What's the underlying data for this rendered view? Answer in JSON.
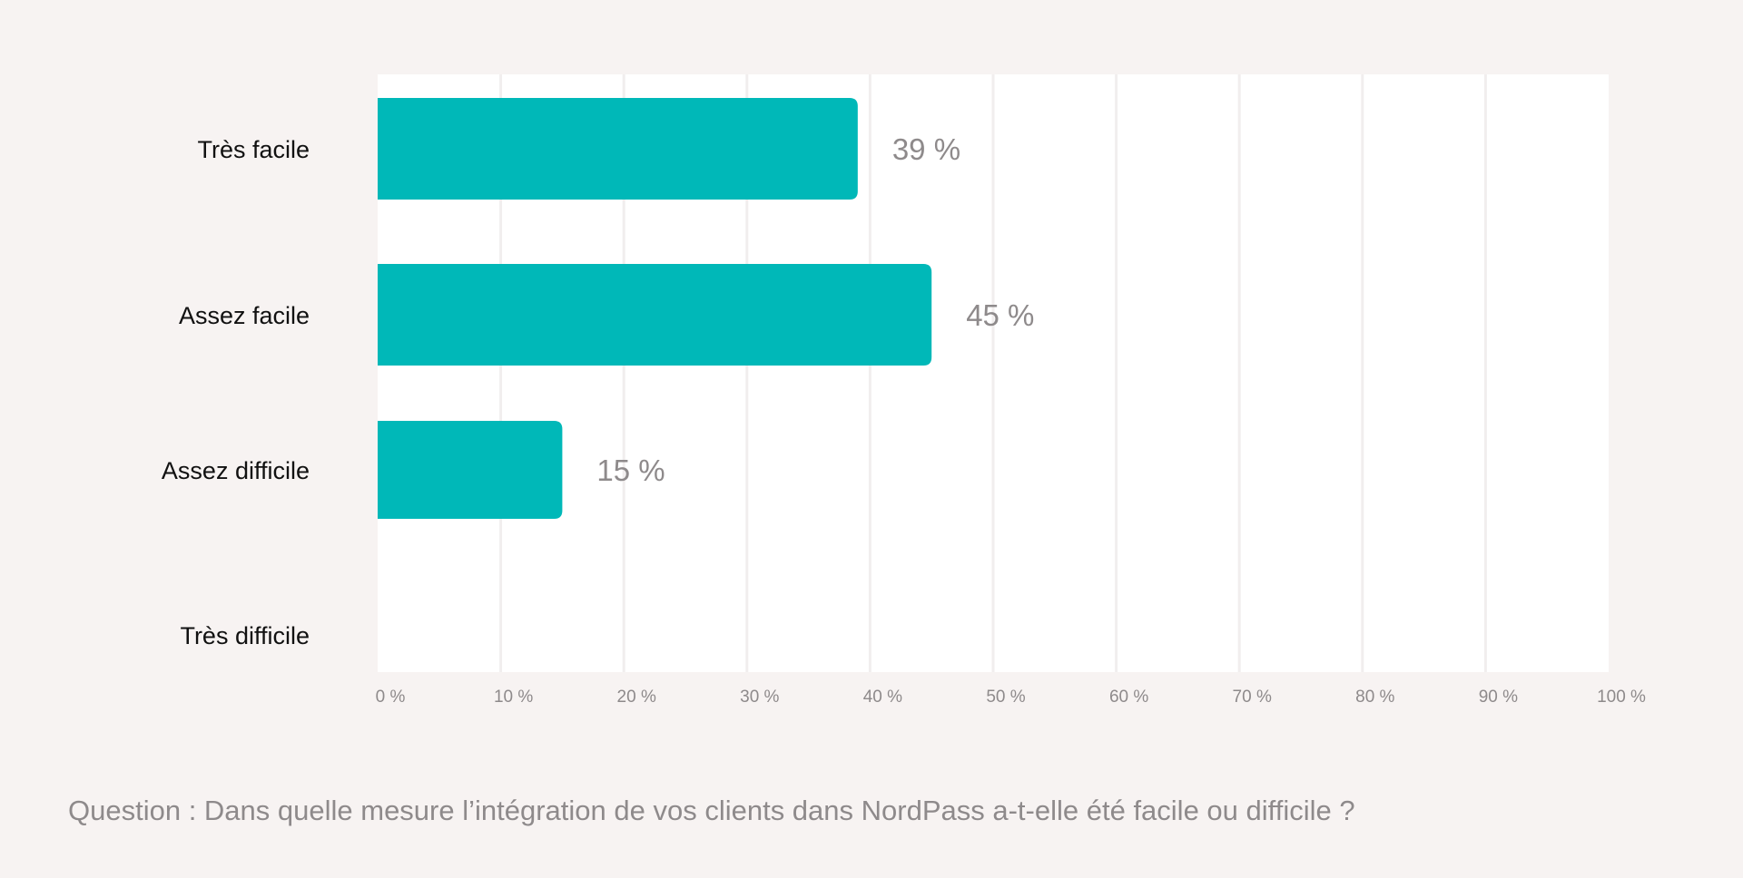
{
  "caption": "Question : Dans quelle mesure l’intégration de vos clients dans NordPass a-t-elle été facile ou difficile ?",
  "chart_data": {
    "type": "bar",
    "orientation": "horizontal",
    "categories": [
      "Très facile",
      "Assez facile",
      "Assez difficile",
      "Très difficile"
    ],
    "values": [
      39,
      45,
      15,
      0
    ],
    "value_labels": [
      "39 %",
      "45 %",
      "15 %",
      ""
    ],
    "xlim": [
      0,
      100
    ],
    "xticks": [
      0,
      10,
      20,
      30,
      40,
      50,
      60,
      70,
      80,
      90,
      100
    ],
    "xtick_labels": [
      "0 %",
      "10 %",
      "20 %",
      "30 %",
      "40 %",
      "50 %",
      "60 %",
      "70 %",
      "80 %",
      "90 %",
      "100 %"
    ],
    "grid": true,
    "bar_color": "#00b8b8",
    "plot_background": "#ffffff",
    "gridline_color": "#f1eeee"
  }
}
